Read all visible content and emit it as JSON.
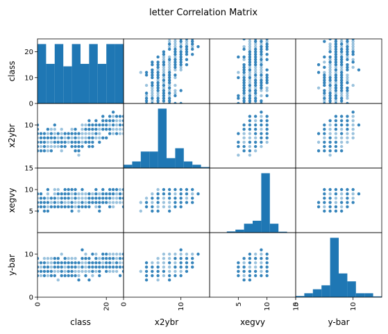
{
  "chart_data": {
    "type": "scatter",
    "title": "letter Correlation Matrix",
    "variables": [
      "class",
      "x2ybr",
      "xegvy",
      "y-bar"
    ],
    "ranges": {
      "class": [
        0,
        25
      ],
      "x2ybr": [
        0,
        15
      ],
      "xegvy": [
        0,
        15
      ],
      "y-bar": [
        0,
        15
      ]
    },
    "ticks": {
      "class": [
        0,
        10,
        20
      ],
      "x2ybr": [
        0,
        10
      ],
      "xegvy": [
        5,
        10,
        15
      ],
      "y-bar": [
        0,
        10
      ]
    },
    "row_ticks": {
      "class": [
        0,
        10,
        20
      ],
      "x2ybr": [
        10
      ],
      "xegvy": [
        5,
        10,
        15
      ],
      "y-bar": [
        0,
        10
      ]
    },
    "col_ticks": {
      "class": [
        0,
        20
      ],
      "x2ybr": [
        0,
        10
      ],
      "xegvy": [
        5,
        10,
        15
      ],
      "y-bar": [
        0,
        10
      ]
    },
    "histograms": {
      "class": {
        "bin_edges": [
          0,
          2.5,
          5,
          7.5,
          10,
          12.5,
          15,
          17.5,
          20,
          22.5,
          25
        ],
        "counts": [
          24,
          16,
          24,
          15,
          24,
          16,
          24,
          16,
          24,
          24
        ]
      },
      "x2ybr": {
        "bin_edges": [
          0,
          1.5,
          3,
          4.5,
          6,
          7.5,
          9,
          10.5,
          12,
          13.5,
          15
        ],
        "counts": [
          1,
          2,
          5,
          5,
          18,
          3,
          6,
          2,
          1,
          0.3
        ]
      },
      "xegvy": {
        "bin_edges": [
          0,
          1.5,
          3,
          4.5,
          6,
          7.5,
          9,
          10.5,
          12,
          13.5,
          15
        ],
        "counts": [
          0,
          0,
          0.4,
          1,
          3,
          4,
          20,
          3,
          0.3,
          0
        ]
      },
      "y-bar": {
        "bin_edges": [
          0,
          1.5,
          3,
          4.5,
          6,
          7.5,
          9,
          10.5,
          12,
          13.5,
          15
        ],
        "counts": [
          0.3,
          1,
          2,
          3,
          15,
          6,
          4,
          1,
          1,
          0.2
        ]
      }
    },
    "color": "#1f77b4",
    "grid": false,
    "legend": "none"
  }
}
